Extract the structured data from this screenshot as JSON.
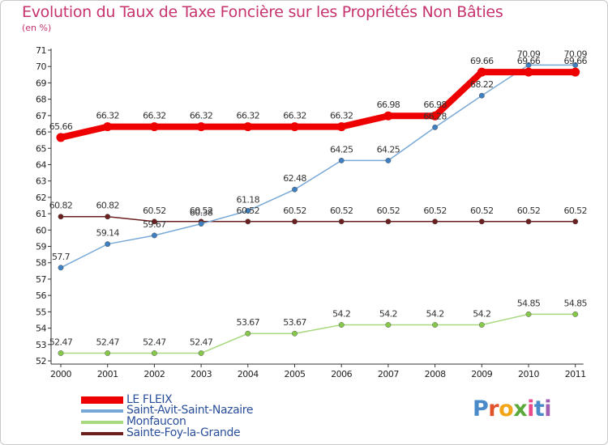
{
  "title": "Evolution du Taux de Taxe Foncière sur les Propriétés Non Bâties",
  "subtitle": "(en %)",
  "logo": {
    "letters": [
      "P",
      "r",
      "o",
      "x",
      "i",
      "t",
      "i"
    ],
    "colors": [
      "#4a8ac9",
      "#e0542c",
      "#f2a516",
      "#5ba93b",
      "#e84c8a",
      "#4a8ac9",
      "#a15fb3"
    ]
  },
  "chart_data": {
    "type": "line",
    "title": "Evolution du Taux de Taxe Foncière sur les Propriétés Non Bâties",
    "ylabel": "(en %)",
    "categories": [
      "2000",
      "2001",
      "2002",
      "2003",
      "2004",
      "2005",
      "2006",
      "2007",
      "2008",
      "2009",
      "2010",
      "2011"
    ],
    "ylim": [
      52,
      71
    ],
    "yticks": [
      52,
      53,
      54,
      55,
      56,
      57,
      58,
      59,
      60,
      61,
      62,
      63,
      64,
      65,
      66,
      67,
      68,
      69,
      70,
      71
    ],
    "grid": false,
    "legend_position": "bottom-left",
    "series": [
      {
        "name": "Sainte-Foy-la-Grande",
        "color": "#6b1f1f",
        "marker": "#6b1f1f",
        "width": 1.5,
        "values": [
          60.82,
          60.82,
          60.52,
          60.52,
          60.52,
          60.52,
          60.52,
          60.52,
          60.52,
          60.52,
          60.52,
          60.52
        ],
        "labels": [
          "60.82",
          "60.82",
          "60.52",
          "60.52",
          "60.52",
          "60.52",
          "60.52",
          "60.52",
          "60.52",
          "60.52",
          "60.52",
          "60.52"
        ]
      },
      {
        "name": "Monfaucon",
        "color": "#a8d880",
        "marker": "#86c84a",
        "width": 1.5,
        "values": [
          52.47,
          52.47,
          52.47,
          52.47,
          53.67,
          53.67,
          54.2,
          54.2,
          54.2,
          54.2,
          54.85,
          54.85
        ],
        "labels": [
          "52.47",
          "52.47",
          "52.47",
          "52.47",
          "53.67",
          "53.67",
          "54.2",
          "54.2",
          "54.2",
          "54.2",
          "54.85",
          "54.85"
        ]
      },
      {
        "name": "Saint-Avit-Saint-Nazaire",
        "color": "#78a9d6",
        "marker": "#3d7fc1",
        "width": 1.5,
        "values": [
          57.7,
          59.14,
          59.67,
          60.38,
          61.18,
          62.48,
          64.25,
          64.25,
          66.28,
          68.22,
          70.09,
          70.09
        ],
        "labels": [
          "57.7",
          "59.14",
          "59.67",
          "60.38",
          "61.18",
          "62.48",
          "64.25",
          "64.25",
          "66.28",
          "68.22",
          "70.09",
          "70.09"
        ]
      },
      {
        "name": "LE FLEIX",
        "color": "#ee0000",
        "marker": "#ee0000",
        "width": 8,
        "values": [
          65.66,
          66.32,
          66.32,
          66.32,
          66.32,
          66.32,
          66.32,
          66.98,
          66.98,
          69.66,
          69.66,
          69.66
        ],
        "labels": [
          "65.66",
          "66.32",
          "66.32",
          "66.32",
          "66.32",
          "66.32",
          "66.32",
          "66.98",
          "66.98",
          "69.66",
          "69.66",
          "69.66"
        ]
      }
    ],
    "legend": [
      "LE FLEIX",
      "Saint-Avit-Saint-Nazaire",
      "Monfaucon",
      "Sainte-Foy-la-Grande"
    ]
  }
}
